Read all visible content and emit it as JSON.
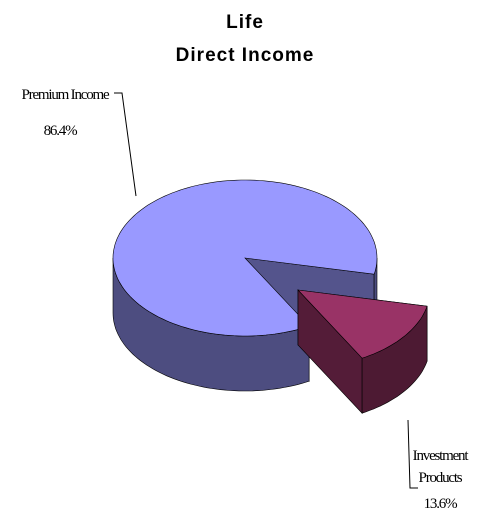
{
  "chart_data": {
    "type": "pie3d",
    "title": [
      "Life",
      "Direct Income"
    ],
    "categories": [
      "Premium Income",
      "Investment Products"
    ],
    "values": [
      86.4,
      13.6
    ],
    "value_labels": [
      "86.4%",
      "13.6%"
    ],
    "colors": [
      "#9999ff",
      "#993366"
    ]
  }
}
